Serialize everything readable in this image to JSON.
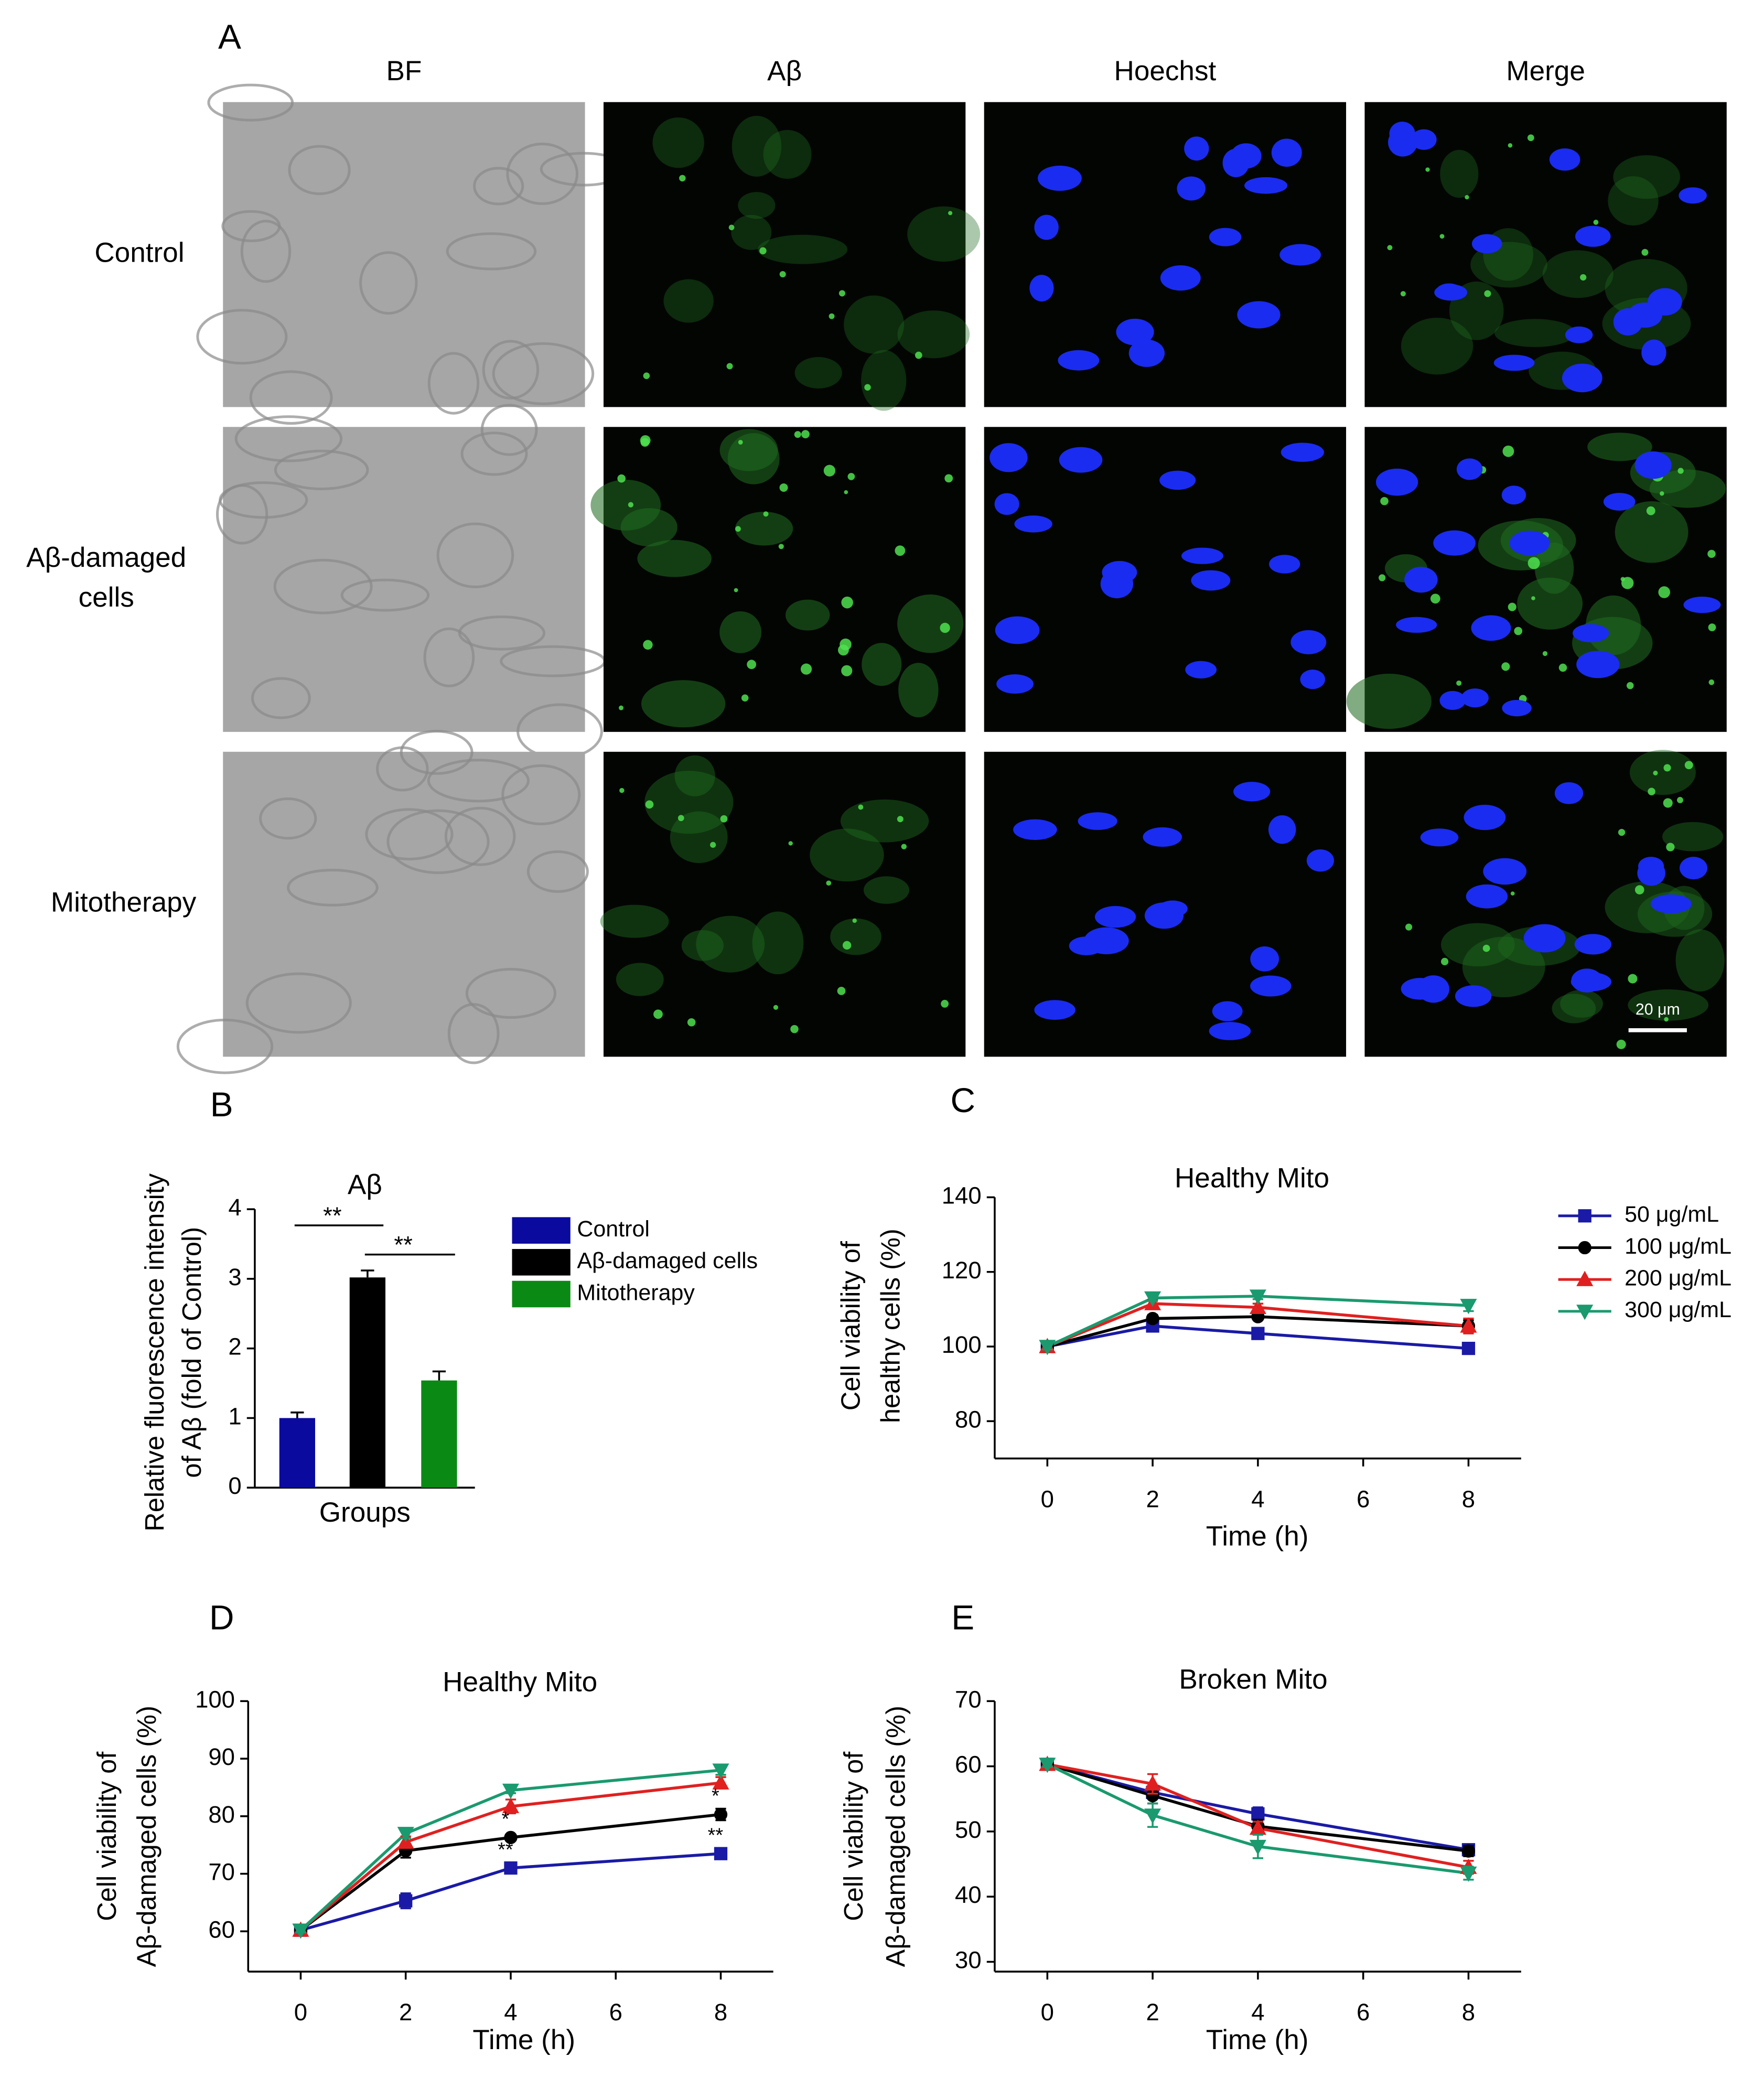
{
  "panel_a": {
    "label": "A",
    "columns": [
      "BF",
      "Aβ",
      "Hoechst",
      "Merge"
    ],
    "rows": [
      [
        "Control"
      ],
      [
        "Aβ-damaged",
        "cells"
      ],
      [
        "Mitotherapy"
      ]
    ],
    "scale_bar": "20 μm"
  },
  "chart_data": [
    {
      "type": "bar",
      "label": "B",
      "title": "Aβ",
      "ylabel": [
        "Relative fluorescence intensity",
        "of Aβ (fold of Control)"
      ],
      "xlabel": "Groups",
      "ylim": [
        0,
        4
      ],
      "yticks": [
        0,
        1,
        2,
        3,
        4
      ],
      "series": [
        {
          "name": "Control",
          "color": "#0a0a9e",
          "values": [
            1.0
          ],
          "errors": [
            0.08
          ]
        },
        {
          "name": "Aβ-damaged cells",
          "color": "#000000",
          "values": [
            3.02
          ],
          "errors": [
            0.1
          ]
        },
        {
          "name": "Mitotherapy",
          "color": "#0a8a14",
          "values": [
            1.54
          ],
          "errors": [
            0.13
          ]
        }
      ],
      "annotations": [
        {
          "text": "**",
          "between": [
            0,
            1
          ]
        },
        {
          "text": "**",
          "between": [
            1,
            2
          ]
        }
      ]
    },
    {
      "type": "line",
      "label": "C",
      "title": "Healthy Mito",
      "ylabel": [
        "Cell viability of",
        "healthy cells (%)"
      ],
      "xlabel": "Time (h)",
      "x": [
        0,
        2,
        4,
        8
      ],
      "xlim": [
        -1,
        9
      ],
      "xticks": [
        0,
        2,
        4,
        6,
        8
      ],
      "ylim": [
        70,
        140
      ],
      "yticks": [
        80,
        100,
        120,
        140
      ],
      "legend": true,
      "series": [
        {
          "name": "50 μg/mL",
          "color": "#1a1aa6",
          "marker": "square",
          "values": [
            100,
            105.5,
            103.5,
            99.5
          ],
          "errors": [
            0.8,
            1,
            0.8,
            1.2
          ]
        },
        {
          "name": "100 μg/mL",
          "color": "#000000",
          "marker": "circle",
          "values": [
            100,
            107.5,
            108,
            105.5
          ],
          "errors": [
            0.8,
            1,
            0.8,
            1.5
          ]
        },
        {
          "name": "200 μg/mL",
          "color": "#e02020",
          "marker": "triangle-up",
          "values": [
            100,
            111.5,
            110.5,
            105.5
          ],
          "errors": [
            0.8,
            1,
            1,
            2
          ]
        },
        {
          "name": "300 μg/mL",
          "color": "#1a9a6e",
          "marker": "triangle-down",
          "values": [
            100,
            113,
            113.5,
            111
          ],
          "errors": [
            0.8,
            0.8,
            0.8,
            1.5
          ]
        }
      ]
    },
    {
      "type": "line",
      "label": "D",
      "title": "Healthy Mito",
      "ylabel": [
        "Cell viability of",
        "Aβ-damaged cells (%)"
      ],
      "xlabel": "Time (h)",
      "x": [
        0,
        2,
        4,
        8
      ],
      "xlim": [
        -1,
        9
      ],
      "xticks": [
        0,
        2,
        4,
        6,
        8
      ],
      "ylim": [
        53,
        100
      ],
      "yticks": [
        60,
        70,
        80,
        90,
        100
      ],
      "series": [
        {
          "color": "#1a1aa6",
          "marker": "square",
          "values": [
            60.2,
            65.3,
            71,
            73.5
          ],
          "errors": [
            0.4,
            1.3,
            0.6,
            0.9
          ]
        },
        {
          "color": "#000000",
          "marker": "circle",
          "values": [
            60.2,
            74,
            76.3,
            80.3
          ],
          "errors": [
            0.4,
            1.2,
            0.5,
            1
          ]
        },
        {
          "color": "#e02020",
          "marker": "triangle-up",
          "values": [
            60.2,
            75.5,
            81.7,
            85.8
          ],
          "errors": [
            0.4,
            1,
            1.2,
            1
          ]
        },
        {
          "color": "#1a9a6e",
          "marker": "triangle-down",
          "values": [
            60.2,
            77,
            84.5,
            88
          ],
          "errors": [
            0.4,
            0.8,
            0.5,
            0.8
          ]
        }
      ],
      "annotations": [
        {
          "text": "**",
          "series": 0,
          "point": 2
        },
        {
          "text": "*",
          "series": 1,
          "point": 2
        },
        {
          "text": "**",
          "series": 0,
          "point": 3
        },
        {
          "text": "*",
          "series": 1,
          "point": 3
        }
      ]
    },
    {
      "type": "line",
      "label": "E",
      "title": "Broken Mito",
      "ylabel": [
        "Cell viability of",
        "Aβ-damaged cells (%)"
      ],
      "xlabel": "Time (h)",
      "x": [
        0,
        2,
        4,
        8
      ],
      "xlim": [
        -1,
        9
      ],
      "xticks": [
        0,
        2,
        4,
        6,
        8
      ],
      "ylim": [
        28.5,
        70
      ],
      "yticks": [
        30,
        40,
        50,
        60,
        70
      ],
      "series": [
        {
          "color": "#1a1aa6",
          "marker": "square",
          "values": [
            60.3,
            56,
            52.7,
            47.2
          ],
          "errors": [
            0.4,
            1,
            1,
            0.8
          ]
        },
        {
          "color": "#000000",
          "marker": "circle",
          "values": [
            60.3,
            55.5,
            50.8,
            47
          ],
          "errors": [
            0.4,
            1.2,
            1,
            0.8
          ]
        },
        {
          "color": "#e02020",
          "marker": "triangle-up",
          "values": [
            60.3,
            57.3,
            50.5,
            44.5
          ],
          "errors": [
            0.4,
            1.5,
            1,
            1
          ]
        },
        {
          "color": "#1a9a6e",
          "marker": "triangle-down",
          "values": [
            60.3,
            52.5,
            47.7,
            43.6
          ],
          "errors": [
            0.4,
            1.8,
            1.8,
            1
          ]
        }
      ]
    }
  ]
}
